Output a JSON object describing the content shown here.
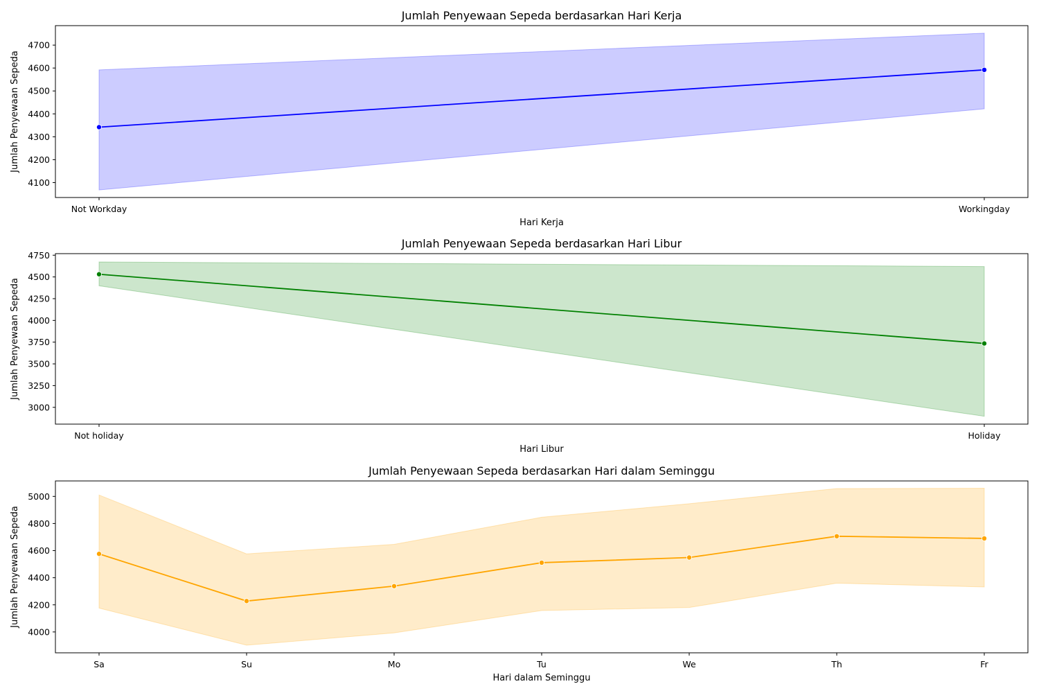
{
  "chart_data": [
    {
      "type": "line",
      "title": "Jumlah Penyewaan Sepeda berdasarkan Hari Kerja",
      "xlabel": "Hari Kerja",
      "ylabel": "Jumlah Penyewaan Sepeda",
      "categories": [
        "Not Workday",
        "Workingday"
      ],
      "ylim": [
        4035,
        4785
      ],
      "yticks": [
        4100,
        4200,
        4300,
        4400,
        4500,
        4600,
        4700
      ],
      "series": [
        {
          "values": [
            4342,
            4592
          ],
          "ci_lower": [
            4068,
            4422
          ],
          "ci_upper": [
            4592,
            4752
          ],
          "color": "#0000ff",
          "band_color": "#ccccff"
        }
      ],
      "grid": false,
      "markers": true,
      "confidence_band": true
    },
    {
      "type": "line",
      "title": "Jumlah Penyewaan Sepeda berdasarkan Hari Libur",
      "xlabel": "Hari Libur",
      "ylabel": "Jumlah Penyewaan Sepeda",
      "categories": [
        "Not holiday",
        "Holiday"
      ],
      "ylim": [
        2807,
        4768
      ],
      "yticks": [
        3000,
        3250,
        3500,
        3750,
        4000,
        4250,
        4500,
        4750
      ],
      "series": [
        {
          "values": [
            4531,
            3735
          ],
          "ci_lower": [
            4398,
            2897
          ],
          "ci_upper": [
            4672,
            4620
          ],
          "color": "#008000",
          "band_color": "#cce6cc"
        }
      ],
      "grid": false,
      "markers": true,
      "confidence_band": true
    },
    {
      "type": "line",
      "title": "Jumlah Penyewaan Sepeda berdasarkan Hari dalam Seminggu",
      "xlabel": "Hari dalam Seminggu",
      "ylabel": "Jumlah Penyewaan Sepeda",
      "categories": [
        "Sa",
        "Su",
        "Mo",
        "Tu",
        "We",
        "Th",
        "Fr"
      ],
      "ylim": [
        3846,
        5114
      ],
      "yticks": [
        4000,
        4200,
        4400,
        4600,
        4800,
        5000
      ],
      "series": [
        {
          "values": [
            4576,
            4228,
            4338,
            4511,
            4549,
            4706,
            4690
          ],
          "ci_lower": [
            4176,
            3902,
            3993,
            4158,
            4180,
            4360,
            4332
          ],
          "ci_upper": [
            5010,
            4576,
            4646,
            4846,
            4946,
            5058,
            5060
          ],
          "color": "#ffa500",
          "band_color": "#ffecca"
        }
      ],
      "grid": false,
      "markers": true,
      "confidence_band": true
    }
  ]
}
